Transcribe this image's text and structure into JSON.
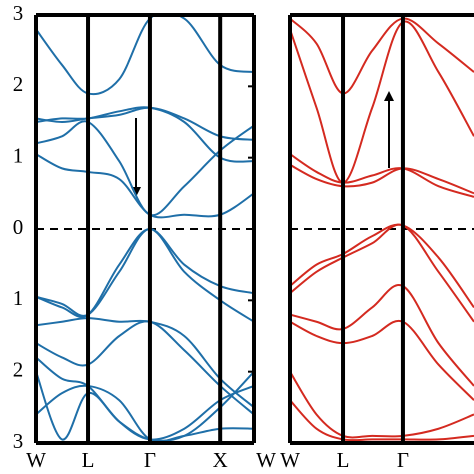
{
  "chart_data": [
    {
      "type": "line",
      "color": "#1f6fa8",
      "xlim": [
        0,
        4.19
      ],
      "ylim": [
        -3,
        3
      ],
      "xticks": [
        {
          "value": 0,
          "label": "W"
        },
        {
          "value": 1,
          "label": "L"
        },
        {
          "value": 2.19,
          "label": "Γ"
        },
        {
          "value": 3.54,
          "label": "X"
        },
        {
          "value": 4.19,
          "label": "W"
        }
      ],
      "yticks": [
        {
          "value": -3,
          "label": "3"
        },
        {
          "value": -2,
          "label": "2"
        },
        {
          "value": -1,
          "label": "1"
        },
        0,
        1,
        2,
        3
      ],
      "hline": 0,
      "x": [
        0,
        0.5,
        1,
        1.6,
        2.19,
        2.85,
        3.54,
        4.19
      ],
      "series": [
        {
          "values": [
            1.05,
            0.85,
            0.8,
            0.7,
            0.2,
            0.2,
            0.2,
            0.5
          ]
        },
        {
          "values": [
            1.2,
            1.3,
            1.5,
            0.95,
            0.2,
            0.6,
            1.1,
            1.45
          ]
        },
        {
          "values": [
            1.5,
            1.55,
            1.55,
            1.65,
            1.7,
            1.5,
            1.0,
            0.95
          ]
        },
        {
          "values": [
            1.55,
            1.5,
            1.55,
            1.6,
            1.7,
            1.55,
            1.3,
            1.25
          ]
        },
        {
          "values": [
            2.8,
            2.3,
            1.9,
            2.1,
            2.95,
            2.95,
            2.3,
            2.2
          ]
        },
        {
          "values": [
            -0.95,
            -1.1,
            -1.2,
            -0.5,
            0.0,
            -0.5,
            -0.8,
            -0.9
          ]
        },
        {
          "values": [
            -0.95,
            -1.05,
            -1.2,
            -0.6,
            0.0,
            -0.6,
            -1.0,
            -1.3
          ]
        },
        {
          "values": [
            -1.35,
            -1.3,
            -1.25,
            -1.3,
            -1.3,
            -1.5,
            -2.1,
            -2.5
          ]
        },
        {
          "values": [
            -1.6,
            -1.8,
            -1.9,
            -1.5,
            -1.3,
            -1.7,
            -2.2,
            -2.6
          ]
        },
        {
          "values": [
            -1.8,
            -2.1,
            -2.2,
            -2.7,
            -2.95,
            -2.8,
            -2.4,
            -2.2
          ]
        },
        {
          "values": [
            -2.6,
            -2.3,
            -2.2,
            -2.4,
            -2.95,
            -2.9,
            -2.8,
            -2.8
          ]
        },
        {
          "values": [
            -2.0,
            -2.95,
            -2.3,
            -2.7,
            -2.95,
            -2.9,
            -2.5,
            -2.0
          ]
        }
      ]
    },
    {
      "type": "line",
      "color": "#d42a20",
      "xlim": [
        0,
        3.47
      ],
      "ylim": [
        -3,
        3
      ],
      "xticks": [
        {
          "value": 0,
          "label": "W"
        },
        {
          "value": 1,
          "label": "L"
        },
        {
          "value": 2.13,
          "label": "Γ"
        }
      ],
      "hline": 0,
      "x": [
        0,
        0.5,
        1,
        1.55,
        2.13,
        2.8,
        3.47
      ],
      "series": [
        {
          "values": [
            0.9,
            0.7,
            0.6,
            0.65,
            0.85,
            0.7,
            0.5
          ]
        },
        {
          "values": [
            1.05,
            0.8,
            0.65,
            0.75,
            0.85,
            0.6,
            0.45
          ]
        },
        {
          "values": [
            2.8,
            1.7,
            0.65,
            1.7,
            2.9,
            2.2,
            1.3
          ]
        },
        {
          "values": [
            2.95,
            2.6,
            1.9,
            2.5,
            2.95,
            2.6,
            2.2
          ]
        },
        {
          "values": [
            -0.8,
            -0.5,
            -0.35,
            -0.1,
            0.05,
            -0.4,
            -1.1
          ]
        },
        {
          "values": [
            -0.9,
            -0.6,
            -0.4,
            -0.2,
            0.05,
            -0.6,
            -1.3
          ]
        },
        {
          "values": [
            -1.2,
            -1.3,
            -1.4,
            -1.1,
            -0.8,
            -1.6,
            -2.2
          ]
        },
        {
          "values": [
            -1.3,
            -1.5,
            -1.6,
            -1.5,
            -1.3,
            -1.9,
            -2.4
          ]
        },
        {
          "values": [
            -2.0,
            -2.6,
            -2.9,
            -2.9,
            -2.9,
            -2.8,
            -2.6
          ]
        },
        {
          "values": [
            -2.4,
            -2.8,
            -2.95,
            -2.95,
            -2.95,
            -2.95,
            -2.9
          ]
        }
      ]
    }
  ]
}
